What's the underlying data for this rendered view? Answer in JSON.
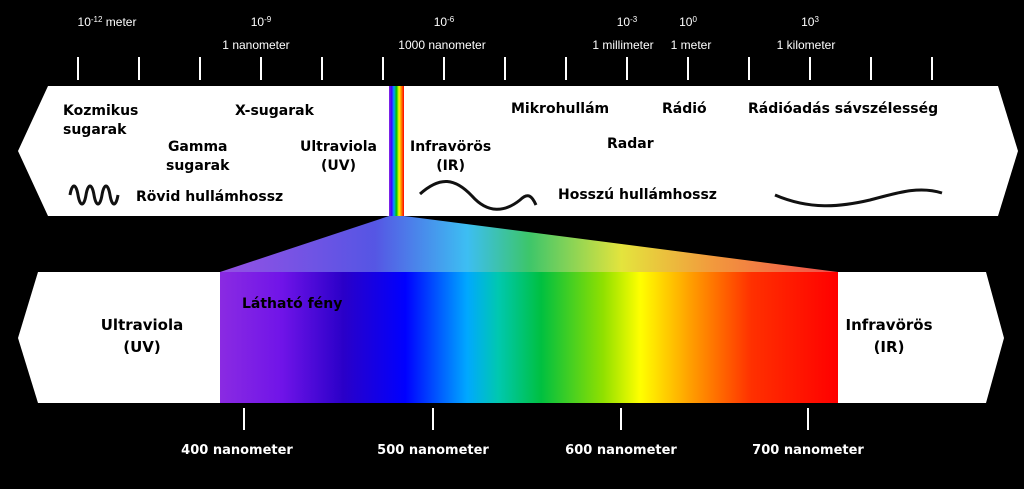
{
  "scale_top": [
    {
      "id": "s1",
      "base": "10",
      "exp": "-12",
      "unit": " meter",
      "name": ""
    },
    {
      "id": "s2",
      "base": "10",
      "exp": "-9",
      "unit": "",
      "name": "1 nanometer"
    },
    {
      "id": "s3",
      "base": "10",
      "exp": "-6",
      "unit": "",
      "name": "1000 nanometer"
    },
    {
      "id": "s4",
      "base": "10",
      "exp": "-3",
      "unit": "",
      "name": "1 millimeter"
    },
    {
      "id": "s5",
      "base": "10",
      "exp": "0",
      "unit": "",
      "name": "1 meter"
    },
    {
      "id": "s6",
      "base": "10",
      "exp": "3",
      "unit": "",
      "name": "1 kilometer"
    }
  ],
  "bands": {
    "cosmic": [
      "Kozmikus",
      "sugarak"
    ],
    "xray": "X-sugarak",
    "gamma": [
      "Gamma",
      "sugarak"
    ],
    "uv": [
      "Ultraviola",
      "(UV)"
    ],
    "ir": [
      "Infravörös",
      "(IR)"
    ],
    "microwave": "Mikrohullám",
    "radar": "Radar",
    "radio": "Rádió",
    "broadcast": "Rádióadás sávszélesség",
    "short_wave": "Rövid hullámhossz",
    "long_wave": "Hosszú hullámhossz"
  },
  "visible_bar": {
    "visible_light": "Látható fény",
    "uv": [
      "Ultraviola",
      "(UV)"
    ],
    "ir": [
      "Infravörös",
      "(IR)"
    ]
  },
  "nm_scale": [
    "400 nanometer",
    "500 nanometer",
    "600 nanometer",
    "700 nanometer"
  ]
}
